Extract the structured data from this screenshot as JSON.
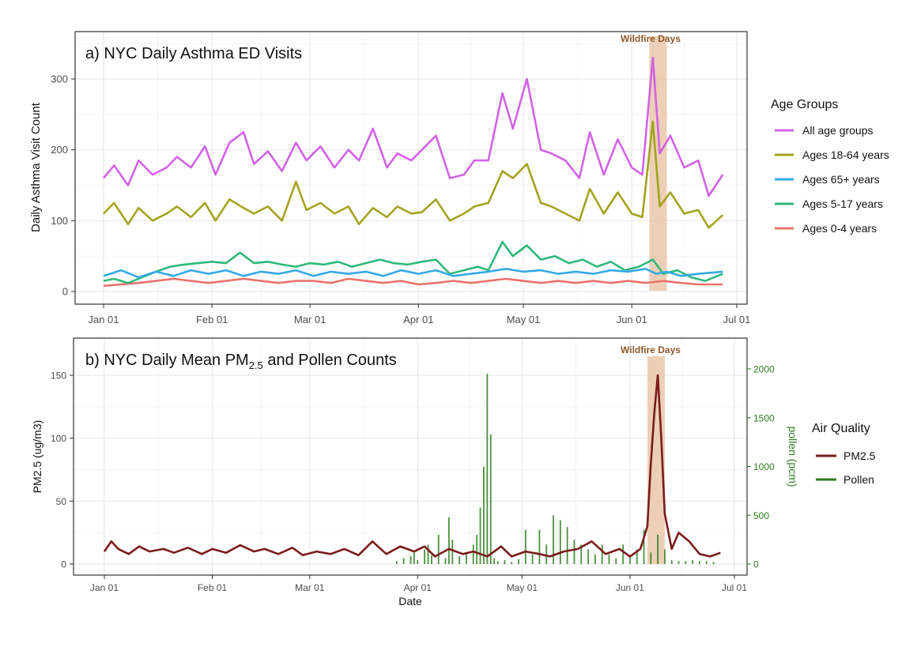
{
  "colors": {
    "all_age": "#d163e6",
    "age_18_64": "#a3a321",
    "age_65": "#36a9e6",
    "age_5_17": "#2eb87a",
    "age_0_4": "#e8736b",
    "pm25": "#7a1c1c",
    "pollen": "#2e7d1f",
    "wildfire_band": "#e9c7a9",
    "wildfire_text": "#8b5a2b"
  },
  "chart_data": [
    {
      "type": "line",
      "title": "a) NYC Daily Asthma ED Visits",
      "xlabel": "",
      "ylabel": "Daily Asthma Visit Count",
      "x_ticks": [
        "Jan 01",
        "Feb 01",
        "Mar 01",
        "Apr 01",
        "May 01",
        "Jun 01",
        "Jul 01"
      ],
      "y_ticks": [
        "0",
        "100",
        "200",
        "300"
      ],
      "ylim": [
        -12,
        355
      ],
      "annotation": "Wildfire Days",
      "wildfire_range_days": [
        157,
        162
      ],
      "legend_title": "Age Groups",
      "legend_position": "right",
      "series": [
        {
          "name": "All age groups",
          "color_key": "all_age",
          "x": [
            1,
            4,
            8,
            11,
            15,
            19,
            22,
            26,
            30,
            33,
            37,
            41,
            44,
            48,
            52,
            56,
            59,
            63,
            67,
            71,
            74,
            78,
            82,
            85,
            89,
            92,
            96,
            100,
            104,
            107,
            111,
            115,
            118,
            122,
            126,
            129,
            133,
            137,
            140,
            144,
            148,
            152,
            155,
            158,
            160,
            163,
            167,
            171,
            174,
            178
          ],
          "values": [
            160,
            178,
            150,
            185,
            165,
            175,
            190,
            175,
            205,
            165,
            210,
            225,
            180,
            198,
            170,
            210,
            185,
            205,
            175,
            200,
            185,
            230,
            175,
            195,
            185,
            200,
            220,
            160,
            165,
            185,
            185,
            280,
            230,
            300,
            200,
            195,
            185,
            160,
            225,
            165,
            215,
            175,
            165,
            330,
            195,
            220,
            175,
            185,
            135,
            165
          ]
        },
        {
          "name": "Ages 18-64 years",
          "color_key": "age_18_64",
          "x": [
            1,
            4,
            8,
            11,
            15,
            19,
            22,
            26,
            30,
            33,
            37,
            41,
            44,
            48,
            52,
            56,
            59,
            63,
            67,
            71,
            74,
            78,
            82,
            85,
            89,
            92,
            96,
            100,
            104,
            107,
            111,
            115,
            118,
            122,
            126,
            129,
            133,
            137,
            140,
            144,
            148,
            152,
            155,
            158,
            160,
            163,
            167,
            171,
            174,
            178
          ],
          "values": [
            110,
            125,
            95,
            118,
            100,
            110,
            120,
            105,
            125,
            100,
            130,
            118,
            110,
            120,
            100,
            155,
            115,
            125,
            110,
            120,
            95,
            118,
            105,
            120,
            110,
            112,
            130,
            100,
            110,
            120,
            125,
            170,
            160,
            180,
            125,
            120,
            110,
            100,
            145,
            110,
            140,
            110,
            105,
            240,
            120,
            140,
            110,
            115,
            90,
            108
          ]
        },
        {
          "name": "Ages 65+ years",
          "color_key": "age_65",
          "x": [
            1,
            6,
            11,
            16,
            21,
            26,
            31,
            36,
            41,
            46,
            51,
            56,
            61,
            66,
            71,
            76,
            81,
            86,
            91,
            96,
            101,
            106,
            111,
            116,
            121,
            126,
            131,
            136,
            141,
            146,
            151,
            156,
            159,
            162,
            166,
            171,
            178
          ],
          "values": [
            22,
            30,
            20,
            28,
            22,
            30,
            25,
            30,
            22,
            28,
            25,
            30,
            22,
            28,
            25,
            28,
            22,
            30,
            25,
            30,
            22,
            25,
            28,
            32,
            28,
            30,
            25,
            28,
            25,
            30,
            28,
            32,
            25,
            28,
            22,
            25,
            28
          ]
        },
        {
          "name": "Ages 5-17 years",
          "color_key": "age_5_17",
          "x": [
            1,
            4,
            8,
            12,
            16,
            20,
            24,
            28,
            32,
            36,
            40,
            44,
            48,
            52,
            56,
            60,
            64,
            68,
            72,
            76,
            80,
            84,
            88,
            92,
            96,
            100,
            104,
            108,
            111,
            115,
            118,
            122,
            126,
            130,
            134,
            138,
            142,
            146,
            150,
            154,
            158,
            161,
            165,
            169,
            173,
            178
          ],
          "values": [
            15,
            18,
            12,
            20,
            28,
            35,
            38,
            40,
            42,
            40,
            55,
            40,
            42,
            38,
            35,
            40,
            38,
            42,
            35,
            40,
            45,
            40,
            38,
            42,
            45,
            25,
            30,
            35,
            30,
            70,
            50,
            65,
            45,
            50,
            40,
            45,
            35,
            42,
            30,
            35,
            45,
            25,
            30,
            20,
            15,
            25
          ]
        },
        {
          "name": "Ages 0-4 years",
          "color_key": "age_0_4",
          "x": [
            1,
            6,
            11,
            16,
            21,
            26,
            31,
            36,
            41,
            46,
            51,
            56,
            61,
            66,
            71,
            76,
            81,
            86,
            91,
            96,
            101,
            106,
            111,
            116,
            121,
            126,
            131,
            136,
            141,
            146,
            151,
            156,
            161,
            166,
            171,
            178
          ],
          "values": [
            8,
            10,
            12,
            15,
            18,
            15,
            12,
            15,
            18,
            15,
            12,
            15,
            15,
            12,
            18,
            15,
            12,
            15,
            10,
            12,
            15,
            12,
            15,
            18,
            15,
            12,
            15,
            12,
            15,
            12,
            15,
            12,
            15,
            12,
            10,
            10
          ]
        }
      ]
    },
    {
      "type": "line",
      "title_main": "b) NYC Daily Mean PM",
      "title_sub": "2.5",
      "title_tail": " and Pollen Counts",
      "xlabel": "Date",
      "ylabel": "PM2.5 (ug/m3)",
      "y2label": "pollen (pcm)",
      "x_ticks": [
        "Jan 01",
        "Feb 01",
        "Mar 01",
        "Apr 01",
        "May 01",
        "Jun 01",
        "Jul 01"
      ],
      "y_ticks": [
        "0",
        "50",
        "100",
        "150"
      ],
      "y2_ticks": [
        "0",
        "500",
        "1000",
        "1500",
        "2000"
      ],
      "ylim": [
        -8,
        170
      ],
      "y2lim": [
        -100,
        2200
      ],
      "annotation": "Wildfire Days",
      "wildfire_range_days": [
        157,
        162
      ],
      "legend_title": "Air Quality",
      "legend_position": "right",
      "pm25": {
        "name": "PM2.5",
        "color_key": "pm25",
        "x": [
          1,
          3,
          5,
          8,
          11,
          14,
          18,
          21,
          25,
          29,
          32,
          36,
          40,
          44,
          47,
          51,
          55,
          58,
          62,
          66,
          70,
          74,
          78,
          82,
          86,
          90,
          93,
          96,
          100,
          104,
          107,
          111,
          115,
          118,
          122,
          126,
          129,
          133,
          137,
          141,
          145,
          149,
          152,
          155,
          157,
          158,
          159,
          160,
          161,
          162,
          164,
          166,
          169,
          172,
          175,
          178
        ],
        "values": [
          10,
          18,
          12,
          8,
          14,
          10,
          12,
          9,
          13,
          8,
          12,
          9,
          15,
          10,
          12,
          8,
          13,
          7,
          10,
          8,
          12,
          7,
          18,
          8,
          14,
          10,
          14,
          6,
          12,
          8,
          10,
          6,
          14,
          6,
          10,
          8,
          6,
          10,
          12,
          18,
          8,
          12,
          6,
          12,
          30,
          80,
          120,
          150,
          100,
          40,
          12,
          25,
          18,
          8,
          6,
          9
        ]
      },
      "pollen": {
        "name": "Pollen",
        "color_key": "pollen",
        "x": [
          85,
          87,
          89,
          90,
          91,
          93,
          94,
          95,
          97,
          99,
          100,
          101,
          103,
          105,
          107,
          108,
          109,
          110,
          111,
          112,
          113,
          114,
          116,
          118,
          120,
          122,
          124,
          126,
          128,
          130,
          132,
          134,
          136,
          138,
          140,
          142,
          144,
          146,
          148,
          150,
          152,
          154,
          156,
          158,
          160,
          162,
          164,
          166,
          168,
          170,
          172,
          174,
          176
        ],
        "values": [
          30,
          60,
          80,
          120,
          40,
          150,
          200,
          90,
          300,
          60,
          480,
          250,
          80,
          120,
          200,
          300,
          580,
          1000,
          1950,
          1330,
          60,
          30,
          40,
          20,
          50,
          350,
          100,
          350,
          200,
          500,
          450,
          380,
          250,
          200,
          150,
          100,
          200,
          100,
          60,
          200,
          80,
          150,
          350,
          120,
          300,
          150,
          40,
          30,
          30,
          40,
          30,
          30,
          20
        ]
      }
    }
  ]
}
